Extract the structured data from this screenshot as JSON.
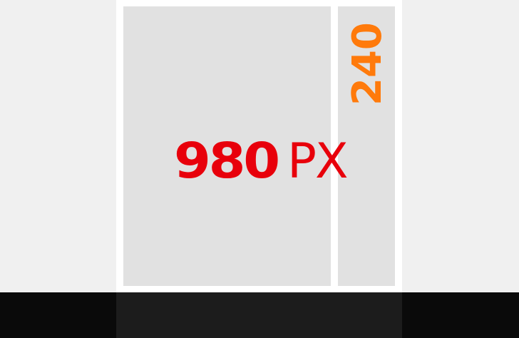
{
  "layout_demo": {
    "main_width_number": "980",
    "main_width_unit": "PX",
    "side_width": "240"
  },
  "colors": {
    "main_label": "#e8000b",
    "side_label": "#ff7a0b",
    "column_fill": "#e1e1e1",
    "background": "#f0f0f0",
    "footer": "#0a0a0a"
  }
}
